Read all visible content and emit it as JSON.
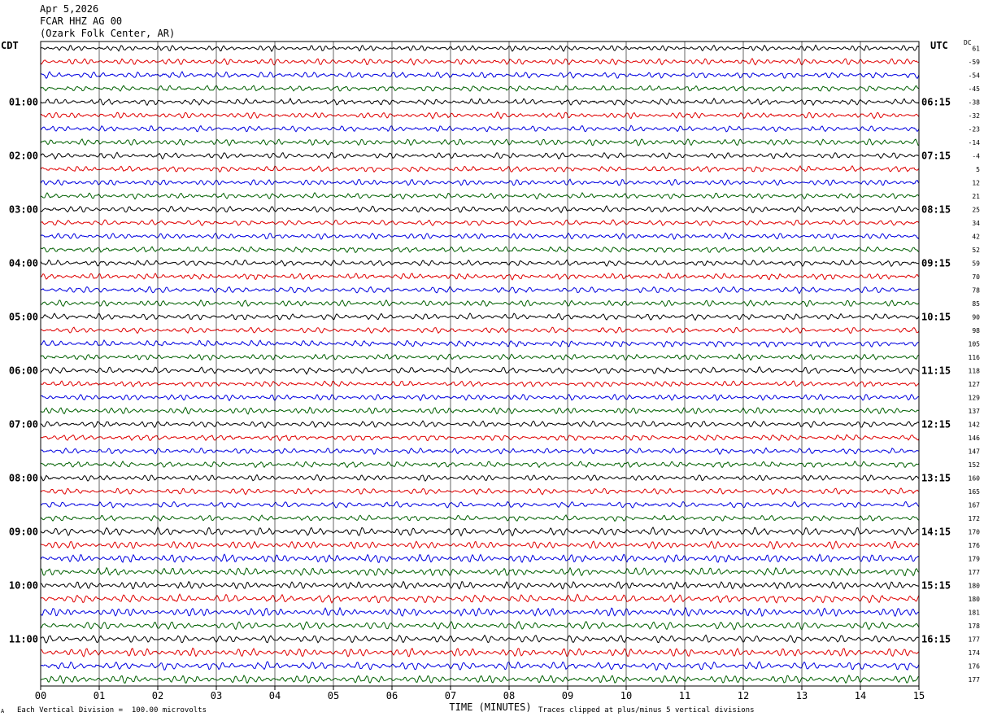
{
  "header": {
    "date": "Apr 5,2026",
    "station": "FCAR HHZ AG 00",
    "location": "(Ozark Folk Center, AR)"
  },
  "left_label": "CDT",
  "right_label": "UTC",
  "dc_label": "DC",
  "footer": {
    "vertical_division": "Each Vertical Division =  100.00 microvolts",
    "clip_note": "Traces clipped at plus/minus 5 vertical divisions",
    "corner_mark": "A"
  },
  "chart_data": {
    "type": "line",
    "xlabel": "TIME (MINUTES)",
    "x_ticks": [
      "00",
      "01",
      "02",
      "03",
      "04",
      "05",
      "06",
      "07",
      "08",
      "09",
      "10",
      "11",
      "12",
      "13",
      "14",
      "15"
    ],
    "xlim": [
      0,
      15
    ],
    "grid": true,
    "trace_colors": [
      "#000000",
      "#e00000",
      "#0000e0",
      "#006000"
    ],
    "left_time_labels": [
      "01:00",
      "02:00",
      "03:00",
      "04:00",
      "05:00",
      "06:00",
      "07:00",
      "08:00",
      "09:00",
      "10:00",
      "11:00"
    ],
    "left_time_label_rows": [
      4,
      8,
      12,
      16,
      20,
      24,
      28,
      32,
      36,
      40,
      44
    ],
    "right_time_labels": [
      "06:15",
      "07:15",
      "08:15",
      "09:15",
      "10:15",
      "11:15",
      "12:15",
      "13:15",
      "14:15",
      "15:15",
      "16:15"
    ],
    "right_time_label_rows": [
      4,
      8,
      12,
      16,
      20,
      24,
      28,
      32,
      36,
      40,
      44
    ],
    "dc_offsets": [
      "61",
      "-59",
      "-54",
      "-45",
      "-38",
      "-32",
      "-23",
      "-14",
      "-4",
      "5",
      "12",
      "21",
      "25",
      "34",
      "42",
      "52",
      "59",
      "70",
      "78",
      "85",
      "90",
      "98",
      "105",
      "116",
      "118",
      "127",
      "129",
      "137",
      "142",
      "146",
      "147",
      "152",
      "160",
      "165",
      "167",
      "172",
      "170",
      "176",
      "179",
      "177",
      "180",
      "180",
      "181",
      "178",
      "177",
      "174",
      "176",
      "177"
    ]
  }
}
